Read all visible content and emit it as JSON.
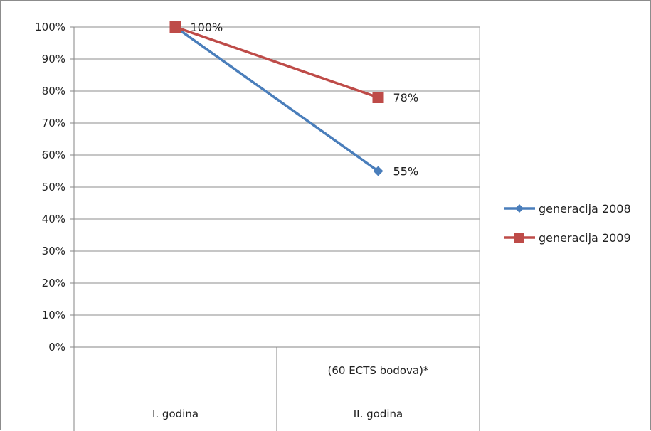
{
  "chart_data": {
    "type": "line",
    "categories": [
      {
        "lines": [
          "I. godina"
        ]
      },
      {
        "lines": [
          "(60 ECTS bodova)*",
          "II. godina"
        ]
      }
    ],
    "y_ticks": [
      "0%",
      "10%",
      "20%",
      "30%",
      "40%",
      "50%",
      "60%",
      "70%",
      "80%",
      "90%",
      "100%"
    ],
    "ylim": [
      0,
      100
    ],
    "grid": true,
    "legend_position": "right",
    "series": [
      {
        "name": "generacija 2008",
        "values": [
          100,
          55
        ],
        "color": "#4a7ebb",
        "marker": "diamond",
        "data_labels": [
          "",
          "55%"
        ]
      },
      {
        "name": "generacija 2009",
        "values": [
          100,
          78
        ],
        "color": "#be4b48",
        "marker": "square",
        "data_labels": [
          "100%",
          "78%"
        ]
      }
    ]
  }
}
